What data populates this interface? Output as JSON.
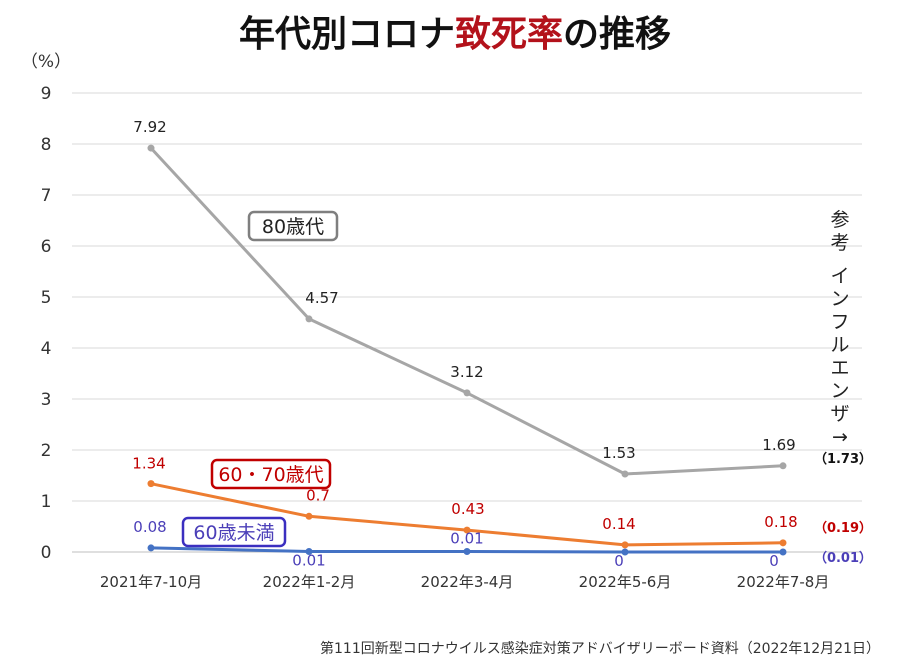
{
  "title_parts": [
    {
      "text": "年代別コロナ",
      "color": "#111111"
    },
    {
      "text": "致死率",
      "color": "#b3121b"
    },
    {
      "text": "の推移",
      "color": "#111111"
    }
  ],
  "footer": "第111回新型コロナウイルス感染症対策アドバイザリーボード資料（2022年12月21日）",
  "chart_data": {
    "type": "line",
    "title": "年代別コロナ致死率の推移",
    "ylabel": "（%）",
    "xlabel": "",
    "ylim": [
      0,
      9
    ],
    "yticks": [
      0,
      1,
      2,
      3,
      4,
      5,
      6,
      7,
      8,
      9
    ],
    "grid": true,
    "categories": [
      "2021年7-10月",
      "2022年1-2月",
      "2022年3-4月",
      "2022年5-6月",
      "2022年7-8月"
    ],
    "series": [
      {
        "name": "80歳代",
        "values": [
          7.92,
          4.57,
          3.12,
          1.53,
          1.69
        ],
        "labels": [
          "7.92",
          "4.57",
          "3.12",
          "1.53",
          "1.69"
        ],
        "color": "#a6a6a6",
        "label_color": "#222222",
        "box_color": "#7f7f7f",
        "reference": "（1.73）"
      },
      {
        "name": "60・70歳代",
        "values": [
          1.34,
          0.7,
          0.43,
          0.14,
          0.18
        ],
        "labels": [
          "1.34",
          "0.7",
          "0.43",
          "0.14",
          "0.18"
        ],
        "color": "#ed7d31",
        "label_color": "#c00000",
        "box_color": "#c00000",
        "reference": "（0.19）"
      },
      {
        "name": "60歳未満",
        "values": [
          0.08,
          0.01,
          0.01,
          0,
          0
        ],
        "labels": [
          "0.08",
          "0.01",
          "0.01",
          "0",
          "0"
        ],
        "color": "#4472c4",
        "label_color": "#4b3fb8",
        "box_color": "#3b2fc0",
        "reference": "（0.01）"
      }
    ],
    "reference_note": "参考 インフルエンザ→"
  }
}
